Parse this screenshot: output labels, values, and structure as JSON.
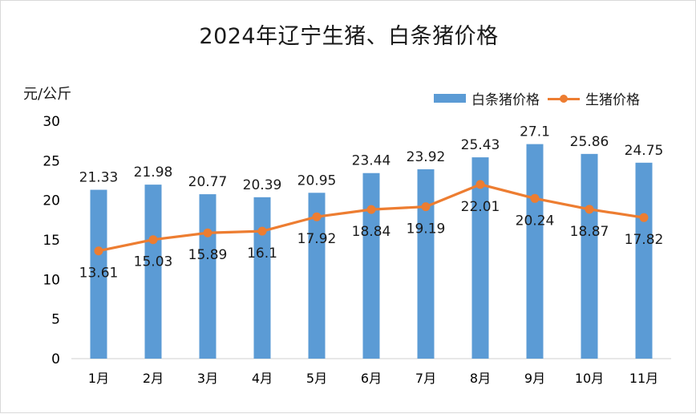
{
  "chart_data": {
    "type": "bar",
    "title": "2024年辽宁生猪、白条猪价格",
    "ylabel": "元/公斤",
    "ylim": [
      0,
      30
    ],
    "yticks": [
      0,
      5,
      10,
      15,
      20,
      25,
      30
    ],
    "categories": [
      "1月",
      "2月",
      "3月",
      "4月",
      "5月",
      "6月",
      "7月",
      "8月",
      "9月",
      "10月",
      "11月"
    ],
    "series": [
      {
        "name": "白条猪价格",
        "type": "bar",
        "color": "#5b9bd5",
        "values": [
          21.33,
          21.98,
          20.77,
          20.39,
          20.95,
          23.44,
          23.92,
          25.43,
          27.1,
          25.86,
          24.75
        ]
      },
      {
        "name": "生猪价格",
        "type": "line",
        "color": "#ed7d31",
        "values": [
          13.61,
          15.03,
          15.89,
          16.1,
          17.92,
          18.84,
          19.19,
          22.01,
          20.24,
          18.87,
          17.82
        ]
      }
    ],
    "legend_position": "top-right",
    "grid": false
  }
}
